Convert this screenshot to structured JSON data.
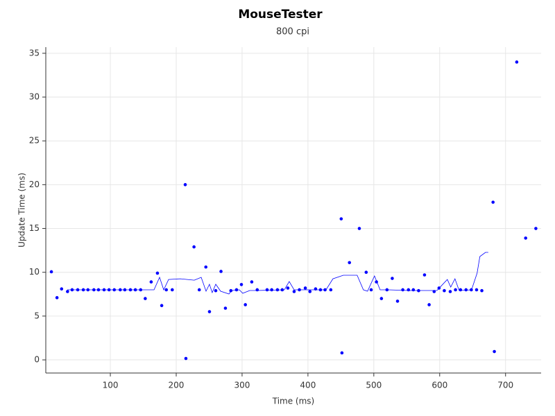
{
  "chart_data": {
    "type": "scatter",
    "title": "MouseTester",
    "subtitle": "800 cpi",
    "x_label": "Time (ms)",
    "y_label": "Update Time (ms)",
    "xlim": [
      2,
      754
    ],
    "ylim": [
      -1.5,
      35.7
    ],
    "xticks": [
      100,
      200,
      300,
      400,
      500,
      600,
      700
    ],
    "yticks": [
      0,
      5,
      10,
      15,
      20,
      25,
      30,
      35
    ],
    "grid": true,
    "series": [
      {
        "kind": "points",
        "color": "#0000ff",
        "x": [
          10.5,
          19,
          26,
          35,
          42,
          50.5,
          59,
          66,
          75,
          82,
          90.5,
          98,
          106,
          115,
          122,
          130.5,
          138,
          146,
          153,
          162,
          171.5,
          178,
          185,
          194,
          213.7,
          214.7,
          227,
          235,
          245,
          250.5,
          260,
          268,
          274.7,
          283,
          291.6,
          299,
          305,
          314.7,
          323,
          338,
          345,
          353.7,
          361,
          369.5,
          379,
          387,
          396,
          403,
          411.6,
          419,
          426,
          434.7,
          450.5,
          451.6,
          463,
          478,
          488.4,
          496,
          504,
          511.6,
          520,
          528,
          536,
          544,
          552.6,
          560,
          568,
          577,
          584,
          591.6,
          599,
          607,
          616,
          624,
          631.6,
          640,
          648,
          656,
          664,
          681,
          683,
          717,
          730.5,
          746
        ],
        "values": [
          10.06,
          7.1,
          8.1,
          7.8,
          8,
          8,
          8,
          8,
          8,
          8,
          8,
          8,
          8,
          8,
          8,
          8,
          8,
          8,
          7,
          8.9,
          9.9,
          6.2,
          8,
          8,
          20,
          0.16,
          12.9,
          8,
          10.6,
          5.5,
          7.9,
          10.1,
          5.9,
          7.9,
          8,
          8.6,
          6.3,
          8.9,
          8,
          8,
          8,
          8,
          8,
          8.2,
          7.8,
          8,
          8.2,
          7.8,
          8.1,
          8,
          8,
          8,
          16.1,
          0.8,
          11.1,
          15,
          10,
          8,
          8.9,
          7,
          8,
          9.3,
          6.7,
          8,
          8,
          8,
          7.9,
          9.7,
          6.3,
          7.8,
          8.2,
          7.9,
          7.8,
          8,
          8,
          8,
          8,
          8,
          7.9,
          18,
          0.95,
          34,
          13.9,
          15
        ]
      },
      {
        "kind": "line",
        "color": "#0000ff",
        "x": [
          34.7,
          143.2,
          166.3,
          174.7,
          181,
          188.4,
          206.3,
          227.4,
          237.9,
          245.3,
          250.5,
          254.7,
          260,
          267.4,
          280,
          284.2,
          295.8,
          301,
          311.6,
          322.1,
          364.2,
          371.6,
          378.9,
          427.4,
          437.9,
          453.7,
          474.7,
          484.2,
          490.5,
          501,
          509.5,
          522.1,
          553.7,
          595.8,
          611.6,
          616.8,
          623.2,
          629.5,
          648.4,
          656.8,
          661,
          669.5,
          673.7
        ],
        "values": [
          8,
          8,
          8,
          9.42,
          8,
          9.18,
          9.26,
          9.1,
          9.42,
          7.84,
          8.63,
          7.68,
          8.63,
          7.84,
          7.52,
          7.92,
          8,
          7.6,
          7.92,
          7.92,
          8,
          8.95,
          8,
          8,
          9.26,
          9.66,
          9.66,
          8,
          7.84,
          9.58,
          8,
          8,
          7.92,
          7.92,
          9.18,
          8.31,
          9.26,
          7.92,
          8,
          9.9,
          11.8,
          12.27,
          12.27
        ]
      }
    ]
  }
}
